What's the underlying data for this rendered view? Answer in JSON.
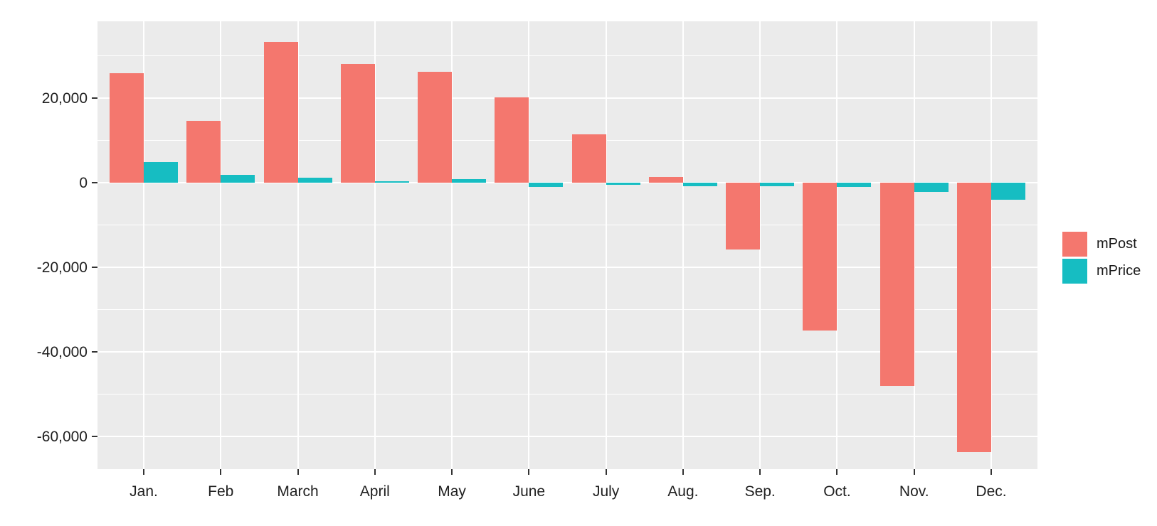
{
  "chart_data": {
    "type": "bar",
    "title": "",
    "xlabel": "",
    "ylabel": "",
    "categories": [
      "Jan.",
      "Feb",
      "March",
      "April",
      "May",
      "June",
      "July",
      "Aug.",
      "Sep.",
      "Oct.",
      "Nov.",
      "Dec."
    ],
    "series": [
      {
        "name": "mPost",
        "color": "#F4776E",
        "values": [
          25900,
          14700,
          33300,
          28200,
          26300,
          20300,
          11400,
          1400,
          -15700,
          -34900,
          -48100,
          -63600
        ]
      },
      {
        "name": "mPrice",
        "color": "#16BDC2",
        "values": [
          5000,
          1900,
          1300,
          400,
          900,
          -900,
          -400,
          -800,
          -800,
          -1000,
          -2200,
          -3900
        ]
      }
    ],
    "y_axis": {
      "tick_values": [
        20000,
        0,
        -20000,
        -40000,
        -60000
      ],
      "tick_labels": [
        "20,000",
        "0",
        "-20,000",
        "-40,000",
        "-60,000"
      ],
      "minor_tick_values": [
        30000,
        10000,
        -10000,
        -30000,
        -50000
      ],
      "range": [
        -67700,
        38200
      ]
    },
    "x_axis": {
      "tick_labels": [
        "Jan.",
        "Feb",
        "March",
        "April",
        "May",
        "June",
        "July",
        "Aug.",
        "Sep.",
        "Oct.",
        "Nov.",
        "Dec."
      ]
    },
    "legend": {
      "position": "right",
      "entries": [
        {
          "label": "mPost",
          "color": "#F4776E"
        },
        {
          "label": "mPrice",
          "color": "#16BDC2"
        }
      ]
    },
    "style": {
      "panel_background": "#EBEBEB",
      "grid_color": "#FFFFFF",
      "tick_color": "#333333",
      "text_color": "#1f1f1f",
      "grid": true,
      "legend_position": "right"
    }
  }
}
